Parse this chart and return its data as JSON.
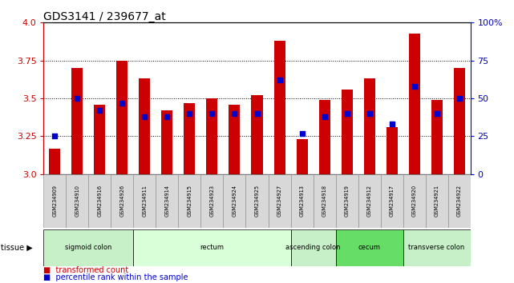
{
  "title": "GDS3141 / 239677_at",
  "samples": [
    "GSM234909",
    "GSM234910",
    "GSM234916",
    "GSM234926",
    "GSM234911",
    "GSM234914",
    "GSM234915",
    "GSM234923",
    "GSM234924",
    "GSM234925",
    "GSM234927",
    "GSM234913",
    "GSM234918",
    "GSM234919",
    "GSM234912",
    "GSM234917",
    "GSM234920",
    "GSM234921",
    "GSM234922"
  ],
  "transformed_counts": [
    3.17,
    3.7,
    3.46,
    3.75,
    3.63,
    3.42,
    3.47,
    3.5,
    3.46,
    3.52,
    3.88,
    3.23,
    3.49,
    3.56,
    3.63,
    3.31,
    3.93,
    3.49,
    3.7
  ],
  "percentile_ranks": [
    25,
    50,
    42,
    47,
    38,
    38,
    40,
    40,
    40,
    40,
    62,
    27,
    38,
    40,
    40,
    33,
    58,
    40,
    50
  ],
  "y_min": 3.0,
  "y_max": 4.0,
  "y_ticks": [
    3.0,
    3.25,
    3.5,
    3.75,
    4.0
  ],
  "y2_ticks": [
    0,
    25,
    50,
    75,
    100
  ],
  "tissue_groups": [
    {
      "label": "sigmoid colon",
      "start": 0,
      "end": 4,
      "color": "#c8f0c8"
    },
    {
      "label": "rectum",
      "start": 4,
      "end": 11,
      "color": "#d8ffd8"
    },
    {
      "label": "ascending colon",
      "start": 11,
      "end": 13,
      "color": "#c8f0c8"
    },
    {
      "label": "cecum",
      "start": 13,
      "end": 16,
      "color": "#66dd66"
    },
    {
      "label": "transverse colon",
      "start": 16,
      "end": 19,
      "color": "#c8f0c8"
    }
  ],
  "bar_color": "#cc0000",
  "dot_color": "#0000cc",
  "bar_width": 0.5,
  "tick_label_color": "#cc0000",
  "tick2_label_color": "#0000cc",
  "grid_dotted_at": [
    3.25,
    3.5,
    3.75
  ]
}
